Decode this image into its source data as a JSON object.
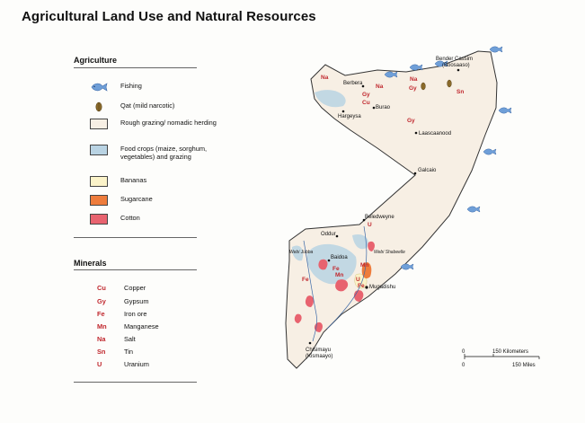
{
  "title": "Agricultural Land Use and Natural Resources",
  "agriculture": {
    "heading": "Agriculture",
    "items": [
      {
        "label": "Fishing",
        "icon": "fish-icon",
        "color": "#6f9fd8"
      },
      {
        "label": "Qat (mild narcotic)",
        "icon": "qat-leaf-icon",
        "color": "#8a6a2a"
      },
      {
        "label": "Rough grazing/ nomadic herding",
        "color": "#f7efe4"
      },
      {
        "label": "Food crops (maize, sorghum, vegetables) and grazing",
        "color": "#b9d3e3"
      },
      {
        "label": "Bananas",
        "color": "#fbf3c9"
      },
      {
        "label": "Sugarcane",
        "color": "#ee7c3c"
      },
      {
        "label": "Cotton",
        "color": "#e8636f"
      }
    ]
  },
  "minerals": {
    "heading": "Minerals",
    "items": [
      {
        "code": "Cu",
        "label": "Copper"
      },
      {
        "code": "Gy",
        "label": "Gypsum"
      },
      {
        "code": "Fe",
        "label": "Iron ore"
      },
      {
        "code": "Mn",
        "label": "Manganese"
      },
      {
        "code": "Na",
        "label": "Salt"
      },
      {
        "code": "Sn",
        "label": "Tin"
      },
      {
        "code": "U",
        "label": "Uranium"
      }
    ]
  },
  "cities": {
    "berbera": "Berbera",
    "bender_cassim": "Bender Cassim",
    "boosaaso": "(Boosaaso)",
    "hargeysa": "Hargeysa",
    "burao": "Burao",
    "laascaanood": "Laascaanood",
    "galcaio": "Galcaio",
    "beledweyne": "Beledweyne",
    "oddur": "Oddur",
    "baidoa": "Baidoa",
    "mugadishu": "Mugadishu",
    "chisimayu": "Chisimayu",
    "kismaayo": "(Kismaayo)"
  },
  "rivers": {
    "juba": "Webi Jubba",
    "shabeelle": "Webi Shabeelle"
  },
  "scale": {
    "zero_km": "0",
    "km": "150 Kilometers",
    "zero_mi": "0",
    "mi": "150 Miles"
  },
  "colors": {
    "mineral": "#c0272d",
    "land": "#f7efe4",
    "food": "#b9d3e3",
    "banana": "#fbf3c9",
    "sugar": "#ee7c3c",
    "cotton": "#e8636f",
    "fish": "#6f9fd8"
  }
}
